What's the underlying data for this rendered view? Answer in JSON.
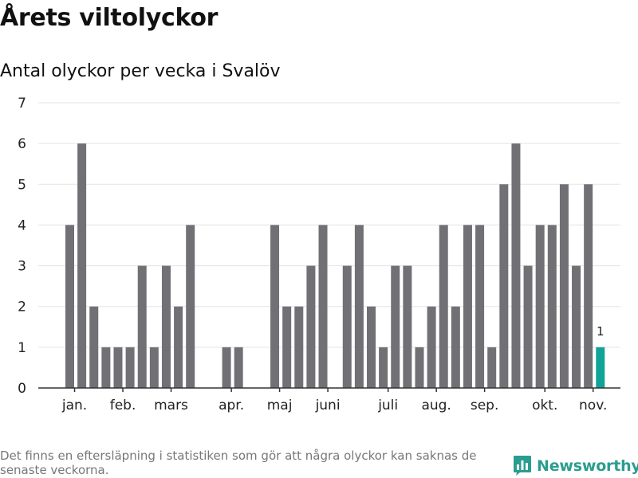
{
  "title": "Årets viltolyckor",
  "subtitle": "Antal olyckor per vecka i Svalöv",
  "footnote": "Det finns en eftersläpning i statistiken som gör att några olyckor kan saknas de senaste veckorna.",
  "brand": {
    "name": "Newsworthy",
    "color": "#2a9d8f",
    "icon": "bar-chart-logo-icon"
  },
  "colors": {
    "bar": "#717075",
    "highlight": "#11a397",
    "grid": "#e3e3e3",
    "axis": "#333333"
  },
  "chart_data": {
    "type": "bar",
    "title": "Antal olyckor per vecka i Svalöv",
    "xlabel": "",
    "ylabel": "",
    "ylim": [
      0,
      7
    ],
    "yticks": [
      0,
      1,
      2,
      3,
      4,
      5,
      6,
      7
    ],
    "grid": true,
    "week_count": 45,
    "weeks": [
      1,
      2,
      3,
      4,
      5,
      6,
      7,
      8,
      9,
      10,
      11,
      12,
      13,
      14,
      15,
      16,
      17,
      18,
      19,
      20,
      21,
      22,
      23,
      24,
      25,
      26,
      27,
      28,
      29,
      30,
      31,
      32,
      33,
      34,
      35,
      36,
      37,
      38,
      39,
      40,
      41,
      42,
      43,
      44,
      45
    ],
    "values": [
      4,
      6,
      2,
      1,
      1,
      1,
      3,
      1,
      3,
      2,
      4,
      0,
      0,
      1,
      1,
      0,
      0,
      4,
      2,
      2,
      3,
      4,
      0,
      3,
      4,
      2,
      1,
      3,
      3,
      1,
      2,
      4,
      2,
      4,
      4,
      1,
      5,
      6,
      3,
      4,
      4,
      5,
      3,
      5,
      1
    ],
    "highlight_index": 44,
    "highlight_label": "1",
    "month_labels": [
      {
        "label": "jan.",
        "week": 1.4
      },
      {
        "label": "feb.",
        "week": 5.4
      },
      {
        "label": "mars",
        "week": 9.4
      },
      {
        "label": "apr.",
        "week": 14.4
      },
      {
        "label": "maj",
        "week": 18.4
      },
      {
        "label": "juni",
        "week": 22.4
      },
      {
        "label": "juli",
        "week": 27.4
      },
      {
        "label": "aug.",
        "week": 31.4
      },
      {
        "label": "sep.",
        "week": 35.4
      },
      {
        "label": "okt.",
        "week": 40.4
      },
      {
        "label": "nov.",
        "week": 44.4
      }
    ]
  }
}
